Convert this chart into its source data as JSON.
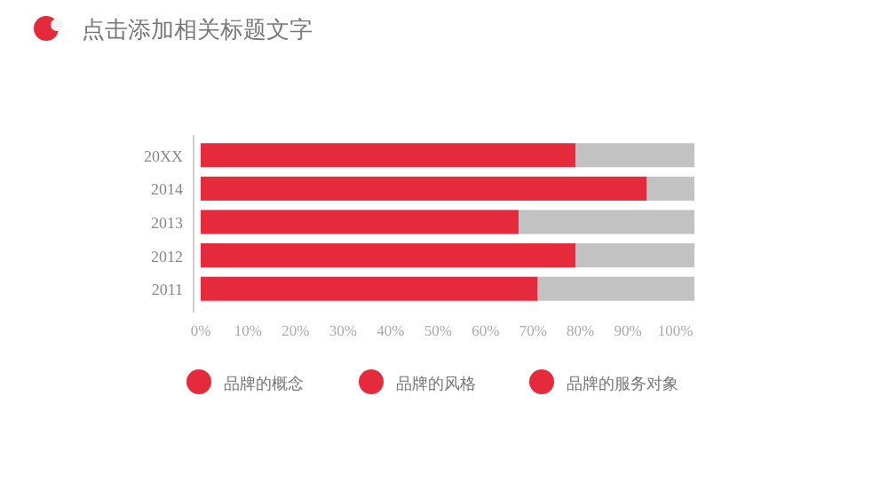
{
  "chart_data": {
    "type": "bar",
    "orientation": "horizontal",
    "stacked": true,
    "title": "点击添加相关标题文字",
    "categories": [
      "20XX",
      "2014",
      "2013",
      "2012",
      "2011"
    ],
    "series": [
      {
        "color": "#e52a3b",
        "values": [
          79,
          94,
          67,
          79,
          71
        ]
      },
      {
        "color": "#c2c2c2",
        "values": [
          25,
          10,
          37,
          25,
          33
        ]
      }
    ],
    "xlim": [
      0,
      104
    ],
    "xticks": [
      {
        "value": 0,
        "label": "0%"
      },
      {
        "value": 10,
        "label": "10%"
      },
      {
        "value": 20,
        "label": "20%"
      },
      {
        "value": 30,
        "label": "30%"
      },
      {
        "value": 40,
        "label": "40%"
      },
      {
        "value": 50,
        "label": "50%"
      },
      {
        "value": 60,
        "label": "60%"
      },
      {
        "value": 70,
        "label": "70%"
      },
      {
        "value": 80,
        "label": "80%"
      },
      {
        "value": 90,
        "label": "90%"
      },
      {
        "value": 100,
        "label": "100%"
      }
    ],
    "annotations": [
      "品牌的概念",
      "品牌的风格",
      "品牌的服务对象"
    ]
  }
}
